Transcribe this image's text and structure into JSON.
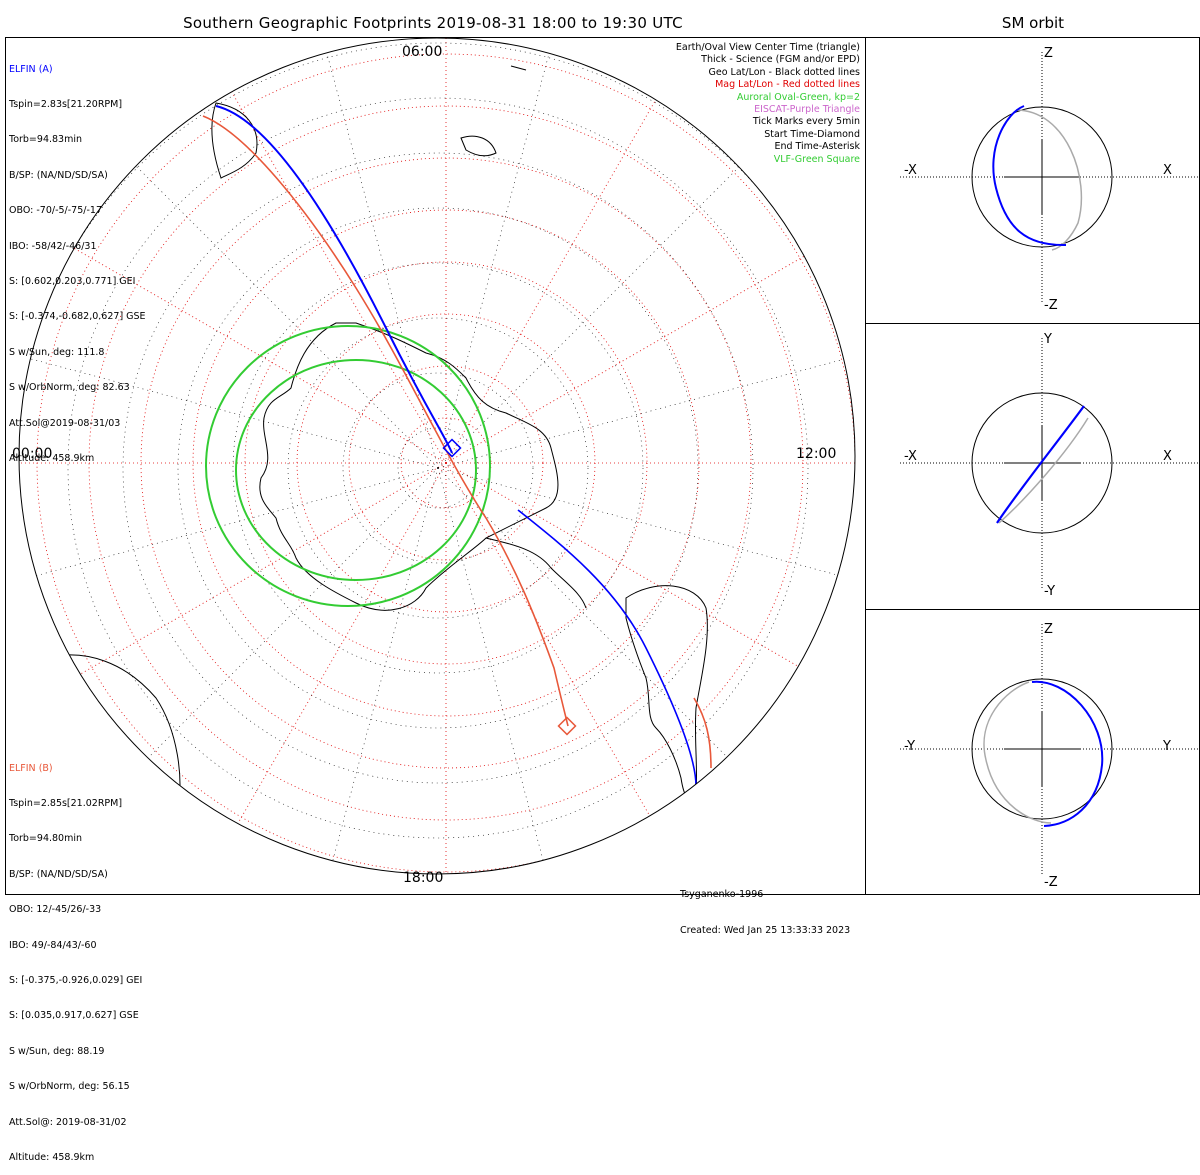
{
  "title": "Southern Geographic Footprints 2019-08-31 18:00 to 19:30 UTC",
  "sm_title": "SM orbit",
  "hours": {
    "top": "06:00",
    "left": "00:00",
    "right": "12:00",
    "bottom": "18:00"
  },
  "elfin_a": {
    "header": "ELFIN (A)",
    "lines": [
      "Tspin=2.83s[21.20RPM]",
      "Torb=94.83min",
      "B/SP: (NA/ND/SD/SA)",
      "OBO: -70/-5/-75/-17",
      "IBO: -58/42/-46/31",
      "S: [0.602,0.203,0.771] GEI",
      "S: [-0.374,-0.682,0.627] GSE",
      "S w/Sun, deg: 111.8",
      "S w/OrbNorm, deg: 82.63",
      "Att.Sol@2019-08-31/03",
      "Altitude: 458.9km"
    ]
  },
  "elfin_b": {
    "header": "ELFIN (B)",
    "lines": [
      "Tspin=2.85s[21.02RPM]",
      "Torb=94.80min",
      "B/SP: (NA/ND/SD/SA)",
      "OBO: 12/-45/26/-33",
      "IBO: 49/-84/43/-60",
      "S: [-0.375,-0.926,0.029] GEI",
      "S: [0.035,0.917,0.627] GSE",
      "S w/Sun, deg: 88.19",
      "S w/OrbNorm, deg: 56.15",
      "Att.Sol@: 2019-08-31/02",
      "Altitude: 458.9km"
    ]
  },
  "legend": [
    {
      "text": "Earth/Oval View Center Time (triangle)",
      "color": "#000000"
    },
    {
      "text": "Thick - Science (FGM and/or EPD)",
      "color": "#000000"
    },
    {
      "text": "Geo Lat/Lon - Black dotted lines",
      "color": "#000000"
    },
    {
      "text": "Mag Lat/Lon - Red dotted lines",
      "color": "#e00000"
    },
    {
      "text": "Auroral Oval-Green, kp=2",
      "color": "#33cc33"
    },
    {
      "text": "EISCAT-Purple Triangle",
      "color": "#cc66cc"
    },
    {
      "text": "Tick Marks every 5min",
      "color": "#000000"
    },
    {
      "text": "Start Time-Diamond",
      "color": "#000000"
    },
    {
      "text": "End Time-Asterisk",
      "color": "#000000"
    },
    {
      "text": "VLF-Green Square",
      "color": "#33cc33"
    }
  ],
  "footer": {
    "model": "Tsyganenko-1996",
    "created": "Created: Wed Jan 25 13:33:33 2023"
  },
  "sm_panels": [
    {
      "top": "Z",
      "bottom": "-Z",
      "left": "-X",
      "right": "X"
    },
    {
      "top": "Y",
      "bottom": "-Y",
      "left": "-X",
      "right": "X"
    },
    {
      "top": "Z",
      "bottom": "-Z",
      "left": "-Y",
      "right": "Y"
    }
  ],
  "colors": {
    "elfin_a": "#0000ff",
    "elfin_b": "#e8583a",
    "geo_grid": "#000000",
    "mag_grid": "#e00000",
    "auroral_oval": "#33cc33",
    "coast": "#000000"
  }
}
